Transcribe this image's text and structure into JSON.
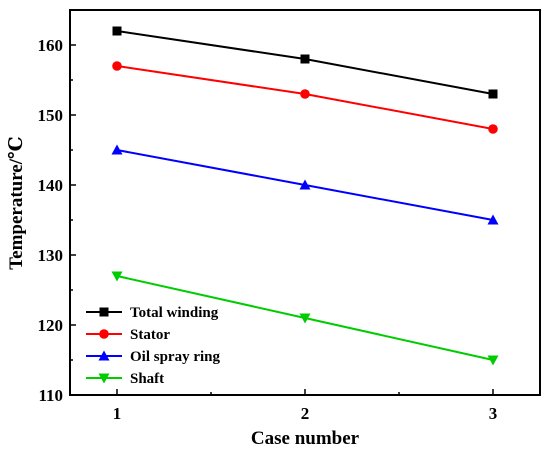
{
  "chart_data": {
    "type": "line",
    "title": "",
    "xlabel": "Case number",
    "ylabel": "Temperature/℃",
    "x": [
      1,
      2,
      3
    ],
    "xticks": [
      "1",
      "2",
      "3"
    ],
    "xlim": [
      0.75,
      3.25
    ],
    "yticks": [
      "110",
      "120",
      "130",
      "140",
      "150",
      "160"
    ],
    "ylim": [
      110,
      165
    ],
    "grid": false,
    "legend_position": "bottom-left",
    "series": [
      {
        "name": "Total winding",
        "values": [
          162,
          158,
          153
        ],
        "color": "#000000",
        "marker": "square"
      },
      {
        "name": "Stator",
        "values": [
          157,
          153,
          148
        ],
        "color": "#ff0000",
        "marker": "circle"
      },
      {
        "name": "Oil spray ring",
        "values": [
          145,
          140,
          135
        ],
        "color": "#0000ff",
        "marker": "triangle-up"
      },
      {
        "name": "Shaft",
        "values": [
          127,
          121,
          115
        ],
        "color": "#00cc00",
        "marker": "triangle-down"
      }
    ]
  }
}
